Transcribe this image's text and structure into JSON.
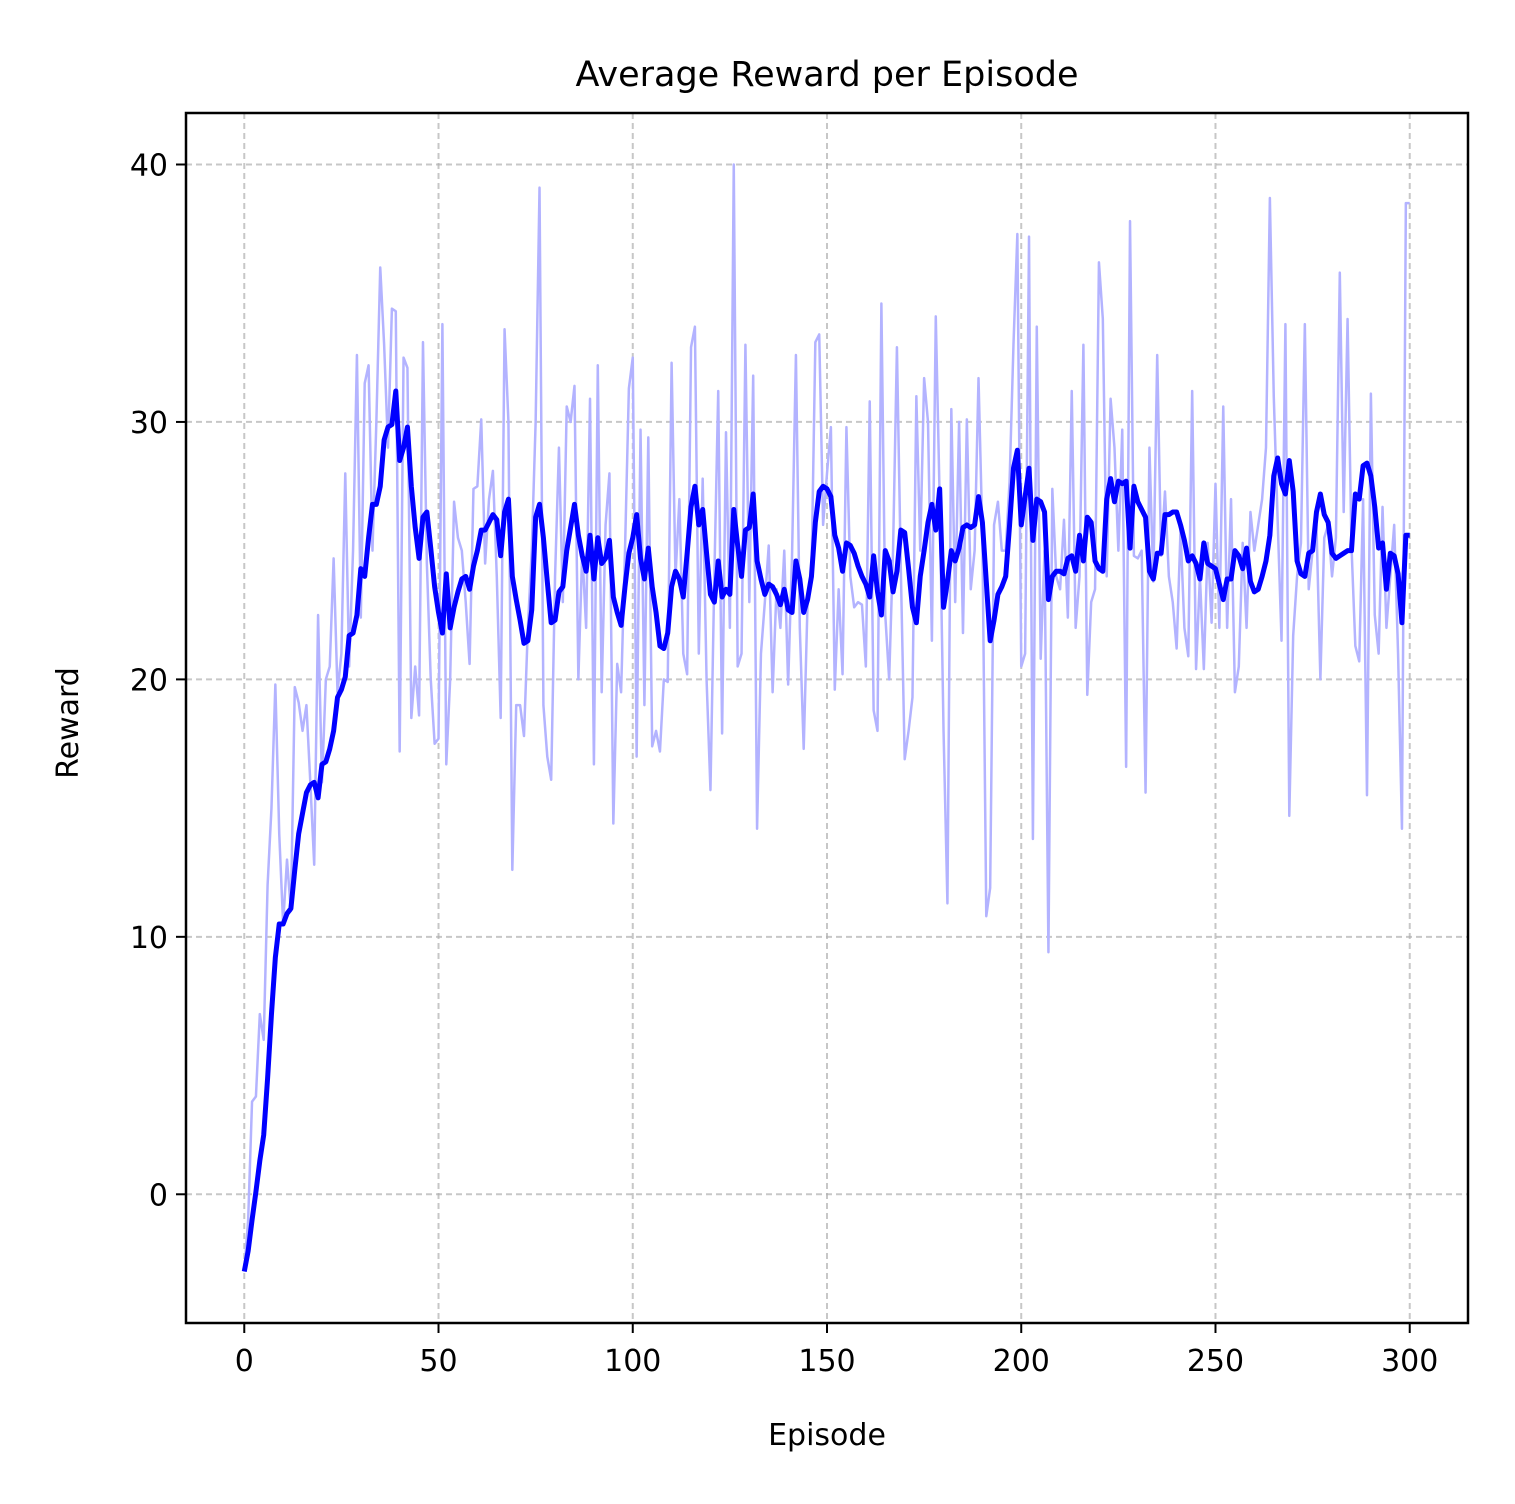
{
  "chart_data": {
    "type": "line",
    "title": "Average Reward per Episode",
    "xlabel": "Episode",
    "ylabel": "Reward",
    "x": [
      0,
      1,
      2,
      3,
      4,
      5,
      6,
      7,
      8,
      9,
      10,
      11,
      12,
      13,
      14,
      15,
      16,
      17,
      18,
      19,
      20,
      21,
      22,
      23,
      24,
      25,
      26,
      27,
      28,
      29,
      30,
      31,
      32,
      33,
      34,
      35,
      36,
      37,
      38,
      39,
      40,
      41,
      42,
      43,
      44,
      45,
      46,
      47,
      48,
      49,
      50,
      51,
      52,
      53,
      54,
      55,
      56,
      57,
      58,
      59,
      60,
      61,
      62,
      63,
      64,
      65,
      66,
      67,
      68,
      69,
      70,
      71,
      72,
      73,
      74,
      75,
      76,
      77,
      78,
      79,
      80,
      81,
      82,
      83,
      84,
      85,
      86,
      87,
      88,
      89,
      90,
      91,
      92,
      93,
      94,
      95,
      96,
      97,
      98,
      99,
      100,
      101,
      102,
      103,
      104,
      105,
      106,
      107,
      108,
      109,
      110,
      111,
      112,
      113,
      114,
      115,
      116,
      117,
      118,
      119,
      120,
      121,
      122,
      123,
      124,
      125,
      126,
      127,
      128,
      129,
      130,
      131,
      132,
      133,
      134,
      135,
      136,
      137,
      138,
      139,
      140,
      141,
      142,
      143,
      144,
      145,
      146,
      147,
      148,
      149,
      150,
      151,
      152,
      153,
      154,
      155,
      156,
      157,
      158,
      159,
      160,
      161,
      162,
      163,
      164,
      165,
      166,
      167,
      168,
      169,
      170,
      171,
      172,
      173,
      174,
      175,
      176,
      177,
      178,
      179,
      180,
      181,
      182,
      183,
      184,
      185,
      186,
      187,
      188,
      189,
      190,
      191,
      192,
      193,
      194,
      195,
      196,
      197,
      198,
      199,
      200,
      201,
      202,
      203,
      204,
      205,
      206,
      207,
      208,
      209,
      210,
      211,
      212,
      213,
      214,
      215,
      216,
      217,
      218,
      219,
      220,
      221,
      222,
      223,
      224,
      225,
      226,
      227,
      228,
      229,
      230,
      231,
      232,
      233,
      234,
      235,
      236,
      237,
      238,
      239,
      240,
      241,
      242,
      243,
      244,
      245,
      246,
      247,
      248,
      249,
      250,
      251,
      252,
      253,
      254,
      255,
      256,
      257,
      258,
      259,
      260,
      261,
      262,
      263,
      264,
      265,
      266,
      267,
      268,
      269,
      270,
      271,
      272,
      273,
      274,
      275,
      276,
      277,
      278,
      279,
      280,
      281,
      282,
      283,
      284,
      285,
      286,
      287,
      288,
      289,
      290,
      291,
      292,
      293,
      294,
      295,
      296,
      297,
      298,
      299,
      300
    ],
    "series": [
      {
        "color": "#b3b3ff",
        "width": 2.5,
        "values": [
          -3.0,
          -1.0,
          3.6,
          3.8,
          7.0,
          6.0,
          12.0,
          15.0,
          19.8,
          14.0,
          10.5,
          13.0,
          11.0,
          19.7,
          19.1,
          18.0,
          19.0,
          16.0,
          12.8,
          22.5,
          16.0,
          20.0,
          20.5,
          24.7,
          19.5,
          21.0,
          28.0,
          20.5,
          25.0,
          32.6,
          22.4,
          31.5,
          32.2,
          25.0,
          30.0,
          36.0,
          33.0,
          29.0,
          34.4,
          34.3,
          17.2,
          32.5,
          32.1,
          18.5,
          20.5,
          18.6,
          33.1,
          24.5,
          20.0,
          17.5,
          17.7,
          33.8,
          16.7,
          20.0,
          26.9,
          25.5,
          25.0,
          23.0,
          20.6,
          27.4,
          27.5,
          30.1,
          24.5,
          27.0,
          28.1,
          24.0,
          18.5,
          33.6,
          30.0,
          12.6,
          19.0,
          19.0,
          17.8,
          22.0,
          25.0,
          30.0,
          39.1,
          19.0,
          17.0,
          16.1,
          24.0,
          29.0,
          23.0,
          30.6,
          30.0,
          31.4,
          20.0,
          25.0,
          22.0,
          30.9,
          16.7,
          32.2,
          19.5,
          26.0,
          28.0,
          14.4,
          20.6,
          19.5,
          25.0,
          31.3,
          32.5,
          17.0,
          29.7,
          19.0,
          29.4,
          17.4,
          18.0,
          17.2,
          20.0,
          19.9,
          32.3,
          24.0,
          27.0,
          21.0,
          20.2,
          32.9,
          33.7,
          21.0,
          27.8,
          20.0,
          15.7,
          24.0,
          31.2,
          17.9,
          29.6,
          22.0,
          40.0,
          20.5,
          21.0,
          33.0,
          23.0,
          31.8,
          14.2,
          21.0,
          23.0,
          25.2,
          19.5,
          23.5,
          22.0,
          25.0,
          19.8,
          24.8,
          32.6,
          22.0,
          17.3,
          23.0,
          24.0,
          33.1,
          33.4,
          26.0,
          28.0,
          29.8,
          19.6,
          23.5,
          20.2,
          29.8,
          24.0,
          22.8,
          23.0,
          22.9,
          20.5,
          30.8,
          18.8,
          18.0,
          34.6,
          22.5,
          20.0,
          25.0,
          32.9,
          24.3,
          16.9,
          18.0,
          19.3,
          31.0,
          25.0,
          31.7,
          30.0,
          21.5,
          34.1,
          27.0,
          18.0,
          11.3,
          30.5,
          23.0,
          30.0,
          21.8,
          30.1,
          23.5,
          25.0,
          31.7,
          25.6,
          10.8,
          11.9,
          26.0,
          26.9,
          25.0,
          25.0,
          27.7,
          33.0,
          37.3,
          20.5,
          21.0,
          37.2,
          13.8,
          33.7,
          20.8,
          25.0,
          9.4,
          27.4,
          24.0,
          23.5,
          26.2,
          22.4,
          31.2,
          22.0,
          24.0,
          33.0,
          19.4,
          23.0,
          23.5,
          36.2,
          34.0,
          24.0,
          30.9,
          29.0,
          25.0,
          29.7,
          16.6,
          37.8,
          24.8,
          24.7,
          25.0,
          15.6,
          29.0,
          23.8,
          32.6,
          24.8,
          27.3,
          24.0,
          23.0,
          21.2,
          25.8,
          22.0,
          20.9,
          31.2,
          20.4,
          24.0,
          20.4,
          25.3,
          22.2,
          27.6,
          22.0,
          30.6,
          22.0,
          27.0,
          19.5,
          20.5,
          25.3,
          22.0,
          26.5,
          25.0,
          26.0,
          27.0,
          29.0,
          38.7,
          31.0,
          26.2,
          21.5,
          33.8,
          14.7,
          21.7,
          24.0,
          25.3,
          33.8,
          23.5,
          25.0,
          26.0,
          20.0,
          25.5,
          26.0,
          24.0,
          25.5,
          35.8,
          26.5,
          34.0,
          25.2,
          21.3,
          20.7,
          27.0,
          15.5,
          31.1,
          22.5,
          21.0,
          26.7,
          22.0,
          24.0,
          26.0,
          21.0,
          14.2,
          38.5,
          38.5
        ]
      },
      {
        "color": "#0000ff",
        "width": 5,
        "values": [
          -3.0,
          -2.2,
          -1.0,
          0.1,
          1.3,
          2.3,
          4.5,
          7.0,
          9.2,
          10.5,
          10.5,
          10.9,
          11.1,
          12.6,
          14.0,
          14.8,
          15.6,
          15.9,
          16.0,
          15.4,
          16.7,
          16.8,
          17.3,
          18.0,
          19.3,
          19.6,
          20.1,
          21.7,
          21.8,
          22.5,
          24.3,
          24.0,
          25.5,
          26.8,
          26.8,
          27.5,
          29.3,
          29.8,
          29.9,
          31.2,
          28.5,
          29.0,
          29.8,
          27.5,
          25.9,
          24.7,
          26.3,
          26.5,
          25.1,
          23.6,
          22.6,
          21.8,
          24.1,
          22.0,
          22.8,
          23.4,
          23.9,
          24.0,
          23.5,
          24.4,
          25.0,
          25.8,
          25.8,
          26.1,
          26.4,
          26.2,
          24.8,
          26.5,
          27.0,
          24.0,
          23.1,
          22.3,
          21.4,
          21.5,
          22.7,
          26.3,
          26.8,
          25.5,
          23.8,
          22.2,
          22.3,
          23.4,
          23.6,
          25.0,
          25.9,
          26.8,
          25.6,
          24.8,
          24.2,
          25.6,
          23.9,
          25.5,
          24.5,
          24.7,
          25.4,
          23.2,
          22.6,
          22.1,
          23.6,
          24.9,
          25.5,
          26.4,
          24.7,
          23.9,
          25.1,
          23.6,
          22.6,
          21.3,
          21.2,
          21.8,
          23.6,
          24.2,
          23.9,
          23.2,
          24.9,
          26.7,
          27.5,
          26.0,
          26.6,
          24.9,
          23.3,
          23.0,
          24.6,
          23.2,
          23.5,
          23.3,
          26.6,
          25.2,
          24.0,
          25.8,
          25.9,
          27.2,
          24.6,
          23.9,
          23.3,
          23.7,
          23.6,
          23.3,
          22.9,
          23.5,
          22.7,
          22.6,
          24.6,
          23.9,
          22.6,
          23.1,
          24.0,
          26.1,
          27.3,
          27.5,
          27.4,
          27.1,
          25.6,
          25.1,
          24.2,
          25.3,
          25.2,
          24.9,
          24.4,
          24.0,
          23.7,
          23.2,
          24.8,
          23.4,
          22.5,
          25.0,
          24.6,
          23.4,
          24.2,
          25.8,
          25.7,
          24.3,
          22.8,
          22.2,
          24.0,
          25.0,
          26.1,
          26.8,
          25.8,
          27.4,
          22.8,
          23.8,
          25.0,
          24.6,
          25.1,
          25.9,
          26.0,
          25.9,
          26.0,
          27.1,
          26.1,
          23.8,
          21.5,
          22.3,
          23.3,
          23.6,
          24.0,
          26.0,
          28.2,
          28.9,
          26.0,
          27.1,
          28.2,
          25.4,
          27.0,
          26.9,
          26.5,
          23.1,
          24.0,
          24.2,
          24.2,
          24.1,
          24.7,
          24.8,
          24.2,
          25.6,
          24.6,
          26.3,
          26.1,
          24.6,
          24.3,
          24.2,
          27.0,
          27.8,
          26.9,
          27.7,
          27.6,
          27.7,
          25.1,
          27.5,
          26.9,
          26.6,
          26.3,
          24.2,
          23.9,
          24.9,
          24.9,
          26.4,
          26.4,
          26.5,
          26.5,
          26.0,
          25.4,
          24.6,
          24.8,
          24.5,
          23.9,
          25.3,
          24.5,
          24.4,
          24.3,
          23.7,
          23.1,
          23.9,
          23.9,
          25.0,
          24.8,
          24.3,
          25.1,
          23.8,
          23.4,
          23.5,
          24.0,
          24.6,
          25.6,
          27.9,
          28.6,
          27.6,
          27.2,
          28.5,
          27.3,
          24.6,
          24.1,
          24.0,
          24.9,
          25.0,
          26.5,
          27.2,
          26.4,
          26.1,
          24.9,
          24.7,
          24.8,
          24.9,
          25.0,
          25.0,
          27.2,
          27.0,
          28.3,
          28.4,
          27.9,
          26.7,
          25.1,
          25.3,
          23.5,
          24.9,
          24.8,
          24.1,
          22.2,
          25.6,
          25.6
        ]
      }
    ],
    "xlim": [
      -15,
      315
    ],
    "ylim": [
      -5,
      42
    ],
    "xticks": [
      0,
      50,
      100,
      150,
      200,
      250,
      300
    ],
    "yticks": [
      0,
      10,
      20,
      30,
      40
    ],
    "grid": true
  }
}
